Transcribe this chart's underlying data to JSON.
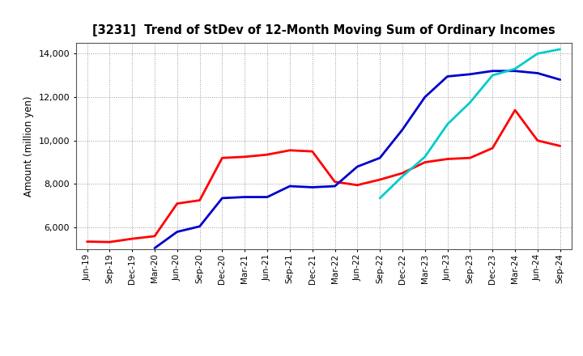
{
  "title": "[3231]  Trend of StDev of 12-Month Moving Sum of Ordinary Incomes",
  "ylabel": "Amount (million yen)",
  "ylim": [
    5000,
    14500
  ],
  "yticks": [
    6000,
    8000,
    10000,
    12000,
    14000
  ],
  "background_color": "#ffffff",
  "grid_color": "#aaaaaa",
  "line_colors": {
    "3y": "#ff0000",
    "5y": "#0000cc",
    "7y": "#00cccc",
    "10y": "#00aa00"
  },
  "x_labels": [
    "Jun-19",
    "Sep-19",
    "Dec-19",
    "Mar-20",
    "Jun-20",
    "Sep-20",
    "Dec-20",
    "Mar-21",
    "Jun-21",
    "Sep-21",
    "Dec-21",
    "Mar-22",
    "Jun-22",
    "Sep-22",
    "Dec-22",
    "Mar-23",
    "Jun-23",
    "Sep-23",
    "Dec-23",
    "Mar-24",
    "Jun-24",
    "Sep-24"
  ],
  "data_3y": [
    5350,
    5330,
    5480,
    5600,
    7100,
    7250,
    9200,
    9250,
    9350,
    9550,
    9500,
    8100,
    7950,
    8200,
    8500,
    9000,
    9150,
    9200,
    9650,
    11400,
    10000,
    9750
  ],
  "data_5y": [
    null,
    null,
    null,
    5050,
    5800,
    6050,
    7350,
    7400,
    7400,
    7900,
    7850,
    7900,
    8800,
    9200,
    10500,
    12000,
    12950,
    13050,
    13200,
    13200,
    13100,
    12800
  ],
  "data_7y": [
    null,
    null,
    null,
    null,
    null,
    null,
    null,
    null,
    null,
    null,
    null,
    null,
    null,
    7350,
    8350,
    9250,
    10750,
    11750,
    13000,
    13300,
    14000,
    14200
  ],
  "data_10y": [
    null,
    null,
    null,
    null,
    null,
    null,
    null,
    null,
    null,
    null,
    null,
    null,
    null,
    null,
    null,
    null,
    null,
    null,
    null,
    null,
    null,
    null
  ]
}
